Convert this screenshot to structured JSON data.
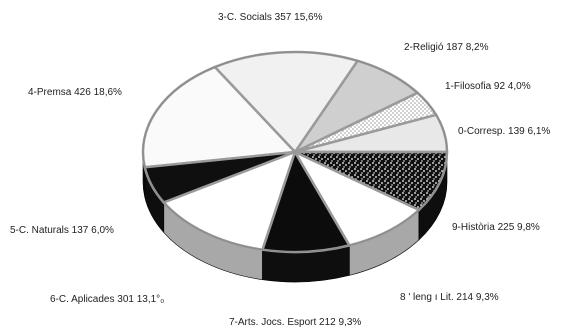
{
  "chart_data": {
    "type": "pie",
    "title": "",
    "three_d": true,
    "slices": [
      {
        "code": "0",
        "name": "Corresp.",
        "count": 139,
        "pct": "6,1",
        "color": "#e4e4e4",
        "label": "0-Corresp. 139 6,1%"
      },
      {
        "code": "1",
        "name": "Filosofia",
        "count": 92,
        "pct": "4,0",
        "color": "#d6d6d6",
        "label": "1-Filosofia 92 4,0%"
      },
      {
        "code": "2",
        "name": "Religió",
        "count": 187,
        "pct": "8,2",
        "color": "#c9c9c9",
        "label": "2-Religió 187 8,2%"
      },
      {
        "code": "3",
        "name": "C. Socials",
        "count": 357,
        "pct": "15,6",
        "color": "#f3f3f3",
        "label": "3-C. Socials 357 15,6%"
      },
      {
        "code": "4",
        "name": "Premsa",
        "count": 426,
        "pct": "18,6",
        "color": "#fbfbfb",
        "label": "4-Premsa 426 18,6%"
      },
      {
        "code": "5",
        "name": "C. Naturals",
        "count": 137,
        "pct": "6,0",
        "color": "#111111",
        "label": "5-C. Naturals 137 6,0%"
      },
      {
        "code": "6",
        "name": "C. Aplicades",
        "count": 301,
        "pct": "13,1",
        "color": "#ffffff",
        "label": "6-C. Aplicades 301 13,1°₀"
      },
      {
        "code": "7",
        "name": "Arts, Jocs, Esport",
        "count": 212,
        "pct": "9,3",
        "color": "#0d0d0d",
        "label": "7-Arts. Jocs. Esport 212 9,3%"
      },
      {
        "code": "8",
        "name": "Lleng. i Lit.",
        "count": 214,
        "pct": "9,3",
        "color": "#ffffff",
        "label": "8 ' leng ı Lit. 214 9,3%"
      },
      {
        "code": "9",
        "name": "Història",
        "count": 225,
        "pct": "9,8",
        "color": "#1a1a1a",
        "label": "9-Història 225 9,8%"
      }
    ]
  },
  "colors": {
    "rim_dark": "#0e0e0e",
    "rim_gray": "#a8a8a8",
    "edge": "#8a8a8a",
    "separator": "#9a9a9a"
  }
}
